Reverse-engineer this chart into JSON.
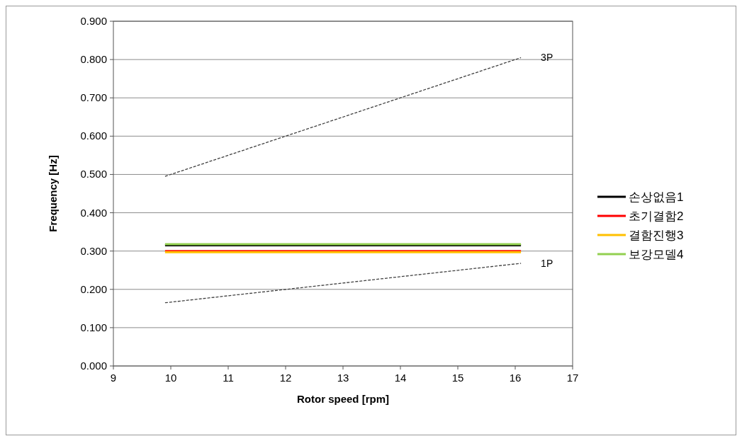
{
  "chart_data": {
    "type": "line",
    "xlabel": "Rotor speed [rpm]",
    "ylabel": "Frequency [Hz]",
    "xlim": [
      9,
      17
    ],
    "xticks": [
      9,
      10,
      11,
      12,
      13,
      14,
      15,
      16,
      17
    ],
    "ylim": [
      0,
      0.9
    ],
    "yticks": [
      {
        "value": 0,
        "label": "0.000"
      },
      {
        "value": 0.1,
        "label": "0.100"
      },
      {
        "value": 0.2,
        "label": "0.200"
      },
      {
        "value": 0.3,
        "label": "0.300"
      },
      {
        "value": 0.4,
        "label": "0.400"
      },
      {
        "value": 0.5,
        "label": "0.500"
      },
      {
        "value": 0.6,
        "label": "0.600"
      },
      {
        "value": 0.7,
        "label": "0.700"
      },
      {
        "value": 0.8,
        "label": "0.800"
      },
      {
        "value": 0.9,
        "label": "0.900"
      }
    ],
    "grid": "y",
    "legend": "right",
    "marker": "none",
    "x": [
      9.9,
      16.1
    ],
    "series": [
      {
        "name": "손상없음1",
        "color": "#000000",
        "values": [
          0.315,
          0.315
        ]
      },
      {
        "name": "초기결함2",
        "color": "#ff0000",
        "values": [
          0.3,
          0.3
        ]
      },
      {
        "name": "결함진행3",
        "color": "#ffc000",
        "values": [
          0.297,
          0.297
        ]
      },
      {
        "name": "보강모델4",
        "color": "#92d050",
        "values": [
          0.318,
          0.318
        ]
      },
      {
        "color": "#404040",
        "line_style": "dashed",
        "values": [
          0.495,
          0.805
        ]
      },
      {
        "color": "#404040",
        "line_style": "dashed",
        "values": [
          0.165,
          0.268
        ]
      }
    ],
    "annotations": [
      {
        "text": "3P",
        "x": 16.1,
        "y": 0.805
      },
      {
        "text": "1P",
        "x": 16.1,
        "y": 0.268
      }
    ]
  }
}
